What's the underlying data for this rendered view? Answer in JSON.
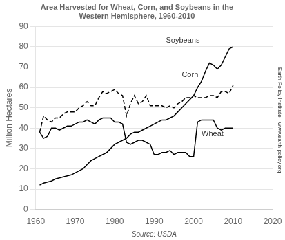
{
  "chart_data": {
    "type": "line",
    "title": "Area Harvested for Wheat, Corn, and Soybeans in the\nWestern Hemisphere, 1960-2010",
    "ylabel": "Million Hectares",
    "source": "Source: USDA",
    "side_label": "Earth Policy Institute - www.earth-policy.org",
    "xlim": [
      1960,
      2020
    ],
    "ylim": [
      0,
      90
    ],
    "xticks": [
      1960,
      1970,
      1980,
      1990,
      2000,
      2010,
      2020
    ],
    "yticks": [
      0,
      10,
      20,
      30,
      40,
      50,
      60,
      70,
      80,
      90
    ],
    "grid": "y",
    "x": [
      1961,
      1962,
      1963,
      1964,
      1965,
      1966,
      1967,
      1968,
      1969,
      1970,
      1971,
      1972,
      1973,
      1974,
      1975,
      1976,
      1977,
      1978,
      1979,
      1980,
      1981,
      1982,
      1983,
      1984,
      1985,
      1986,
      1987,
      1988,
      1989,
      1990,
      1991,
      1992,
      1993,
      1994,
      1995,
      1996,
      1997,
      1998,
      1999,
      2000,
      2001,
      2002,
      2003,
      2004,
      2005,
      2006,
      2007,
      2008,
      2009,
      2010
    ],
    "series": [
      {
        "name": "Soybeans",
        "color": "#000000",
        "line_style": "solid",
        "values": [
          12,
          13,
          13.5,
          14,
          15,
          15.5,
          16,
          16.5,
          17,
          18,
          19,
          20,
          22,
          24,
          25,
          26,
          27,
          28,
          30,
          32,
          33,
          34,
          35,
          37,
          38,
          38,
          39,
          40,
          41,
          42,
          43,
          44,
          44,
          45,
          46,
          48,
          50,
          52,
          54,
          56,
          60,
          63,
          68,
          72,
          71,
          69,
          71,
          75,
          79,
          80
        ]
      },
      {
        "name": "Corn",
        "color": "#000000",
        "line_style": "dashed",
        "values": [
          38,
          46,
          44,
          43,
          45,
          45,
          47,
          48,
          48,
          48,
          50,
          51,
          53,
          51,
          51,
          55,
          58,
          57,
          58,
          59,
          57,
          56,
          46,
          52,
          56,
          52,
          53,
          56,
          51,
          51,
          51,
          51,
          50,
          51,
          50,
          52,
          53,
          55,
          55,
          56,
          55,
          55,
          55,
          56,
          56,
          55,
          58,
          58,
          57,
          61
        ]
      },
      {
        "name": "Wheat",
        "color": "#000000",
        "line_style": "solid",
        "values": [
          38,
          35,
          36,
          40,
          40,
          39,
          40,
          41,
          41,
          42,
          43,
          43,
          44,
          43,
          42,
          44,
          45,
          45,
          45,
          43,
          43,
          42,
          33,
          32,
          33,
          34,
          34,
          33,
          32,
          27,
          27,
          28,
          28,
          29,
          27,
          28,
          28,
          28,
          26,
          26,
          43,
          44,
          44,
          44,
          44,
          40,
          39,
          40,
          40,
          40
        ]
      }
    ],
    "annotations": [
      {
        "text": "Soybeans",
        "x": 1993,
        "y": 83
      },
      {
        "text": "Corn",
        "x": 1997,
        "y": 66
      },
      {
        "text": "Wheat",
        "x": 2002,
        "y": 37
      }
    ]
  }
}
